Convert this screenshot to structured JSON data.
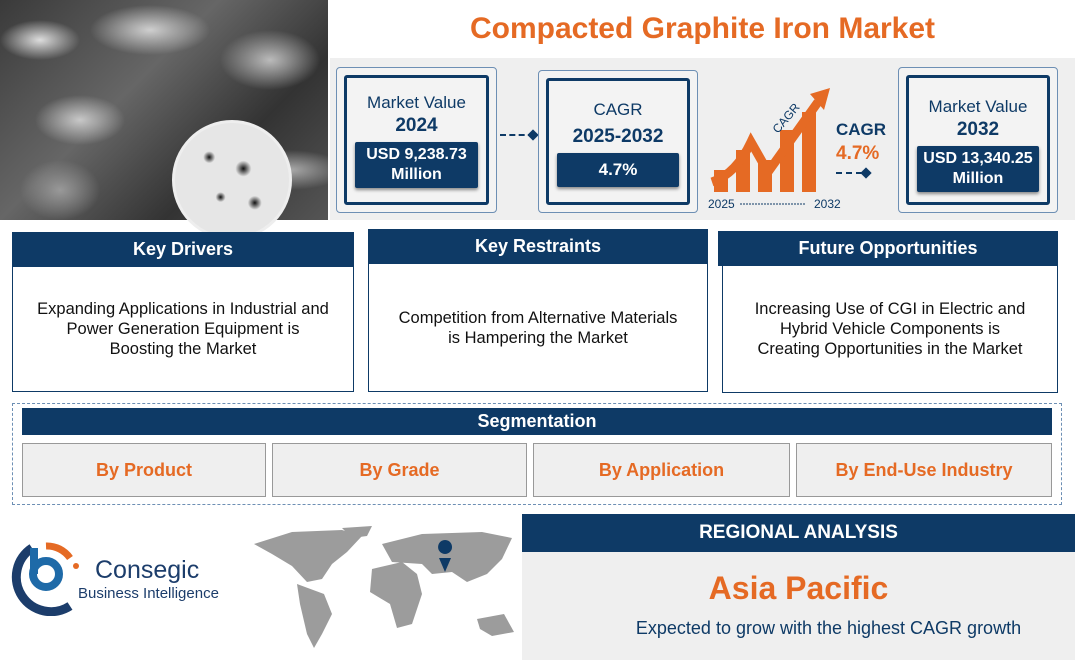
{
  "title": "Compacted Graphite Iron Market",
  "stats": {
    "mv2024": {
      "label": "Market Value",
      "year": "2024",
      "value": "USD 9,238.73 Million"
    },
    "cagr": {
      "label": "CAGR",
      "years": "2025-2032",
      "value": "4.7%"
    },
    "graphic": {
      "arrow_text": "CAGR",
      "label": "CAGR",
      "value": "4.7%",
      "start": "2025",
      "end": "2032"
    },
    "mv2032": {
      "label": "Market Value",
      "year": "2032",
      "value": "USD 13,340.25 Million"
    }
  },
  "sections": [
    {
      "title": "Key Drivers",
      "text": "Expanding Applications in Industrial and Power Generation Equipment is Boosting the Market"
    },
    {
      "title": "Key Restraints",
      "text": "Competition from Alternative Materials is Hampering the Market"
    },
    {
      "title": "Future Opportunities",
      "text": "Increasing Use of CGI in Electric and Hybrid Vehicle Components is Creating Opportunities in the Market"
    }
  ],
  "segmentation": {
    "title": "Segmentation",
    "items": [
      "By Product",
      "By Grade",
      "By Application",
      "By End-Use Industry"
    ]
  },
  "logo": {
    "name": "Consegic",
    "tagline": "Business Intelligence"
  },
  "regional": {
    "header": "REGIONAL ANALYSIS",
    "region": "Asia Pacific",
    "text": "Expected to grow with the highest CAGR growth"
  },
  "colors": {
    "navy": "#0e3a66",
    "orange": "#e56a24",
    "panel": "#efefef"
  }
}
